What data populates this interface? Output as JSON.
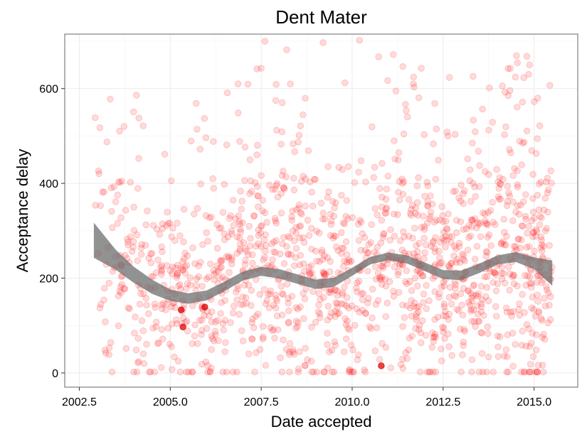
{
  "chart_data": {
    "type": "scatter",
    "title": "Dent Mater",
    "xlabel": "Date accepted",
    "ylabel": "Acceptance delay",
    "xlim": [
      2002.1,
      2016.2
    ],
    "ylim": [
      -30,
      715
    ],
    "xticks": [
      2002.5,
      2005.0,
      2007.5,
      2010.0,
      2012.5,
      2015.0
    ],
    "xtick_labels": [
      "2002.5",
      "2005.0",
      "2007.5",
      "2010.0",
      "2012.5",
      "2015.0"
    ],
    "yticks": [
      0,
      200,
      400,
      600
    ],
    "ytick_labels": [
      "0",
      "200",
      "400",
      "600"
    ],
    "grid": true,
    "point_color": "#ff0000",
    "band_color": "#6e6e6e",
    "point_count_approx": 1500,
    "highlight_points": [
      {
        "x": 2005.3,
        "y": 133
      },
      {
        "x": 2005.35,
        "y": 97
      },
      {
        "x": 2005.95,
        "y": 139
      },
      {
        "x": 2010.8,
        "y": 15
      }
    ],
    "outlier_points": [
      {
        "x": 2003.35,
        "y": 578
      },
      {
        "x": 2007.6,
        "y": 700
      },
      {
        "x": 2008.2,
        "y": 682
      },
      {
        "x": 2009.2,
        "y": 697
      },
      {
        "x": 2010.2,
        "y": 702
      },
      {
        "x": 2011.2,
        "y": 595
      },
      {
        "x": 2011.9,
        "y": 643
      },
      {
        "x": 2014.8,
        "y": 668
      },
      {
        "x": 2014.85,
        "y": 630
      },
      {
        "x": 2015.1,
        "y": 580
      },
      {
        "x": 2009.8,
        "y": 612
      },
      {
        "x": 2007.5,
        "y": 643
      },
      {
        "x": 2008.3,
        "y": 610
      },
      {
        "x": 2007.9,
        "y": 575
      }
    ],
    "smooth_fit": {
      "x": [
        2002.9,
        2003.5,
        2004.0,
        2004.5,
        2005.0,
        2005.5,
        2006.0,
        2006.5,
        2007.0,
        2007.5,
        2008.0,
        2008.5,
        2009.0,
        2009.5,
        2010.0,
        2010.5,
        2011.0,
        2011.5,
        2012.0,
        2012.5,
        2013.0,
        2013.5,
        2014.0,
        2014.5,
        2015.0,
        2015.5
      ],
      "lower": [
        243,
        218,
        190,
        167,
        152,
        146,
        153,
        173,
        195,
        205,
        199,
        188,
        177,
        182,
        205,
        229,
        238,
        231,
        215,
        198,
        196,
        211,
        229,
        234,
        219,
        184
      ],
      "upper": [
        317,
        260,
        224,
        197,
        176,
        168,
        174,
        193,
        214,
        224,
        219,
        208,
        197,
        201,
        222,
        245,
        254,
        248,
        233,
        217,
        216,
        231,
        248,
        255,
        244,
        237
      ]
    }
  }
}
